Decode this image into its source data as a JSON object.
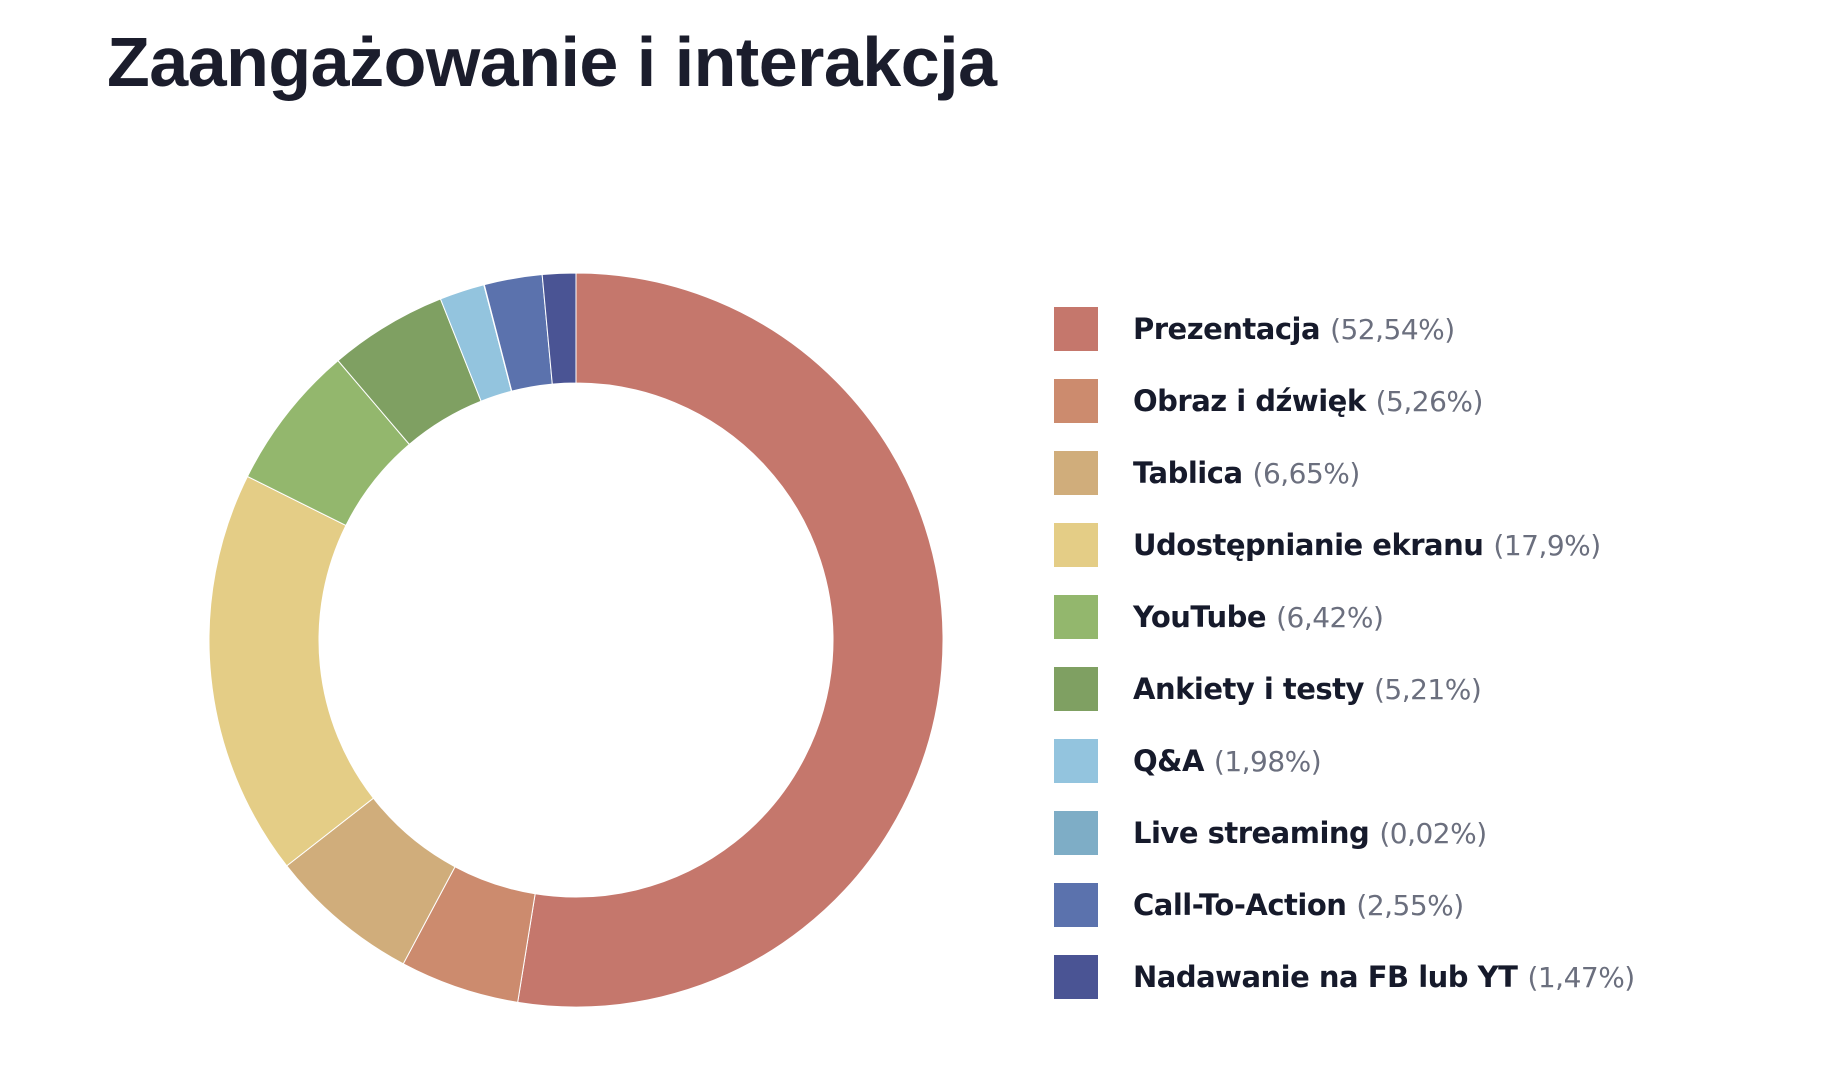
{
  "chart_data": {
    "type": "pie",
    "variant": "donut",
    "title": "Zaangażowanie i interakcja",
    "legend_position": "right",
    "start": "top-clockwise",
    "slices": [
      {
        "label": "Prezentacja",
        "value": 52.54,
        "display": "(52,54%)",
        "color": "#c5776c"
      },
      {
        "label": "Obraz i dźwięk",
        "value": 5.26,
        "display": "(5,26%)",
        "color": "#cc8b6e"
      },
      {
        "label": "Tablica",
        "value": 6.65,
        "display": "(6,65%)",
        "color": "#d0ad7b"
      },
      {
        "label": "Udostępnianie ekranu",
        "value": 17.9,
        "display": "(17,9%)",
        "color": "#e4cd86"
      },
      {
        "label": "YouTube",
        "value": 6.42,
        "display": "(6,42%)",
        "color": "#93b76d"
      },
      {
        "label": "Ankiety i testy",
        "value": 5.21,
        "display": "(5,21%)",
        "color": "#7fa062"
      },
      {
        "label": "Q&A",
        "value": 1.98,
        "display": "(1,98%)",
        "color": "#93c4de"
      },
      {
        "label": "Live streaming",
        "value": 0.02,
        "display": "(0,02%)",
        "color": "#7eadc6"
      },
      {
        "label": "Call-To-Action",
        "value": 2.55,
        "display": "(2,55%)",
        "color": "#5b72ad"
      },
      {
        "label": "Nadawanie na FB lub YT",
        "value": 1.47,
        "display": "(1,47%)",
        "color": "#4a5494"
      }
    ]
  }
}
